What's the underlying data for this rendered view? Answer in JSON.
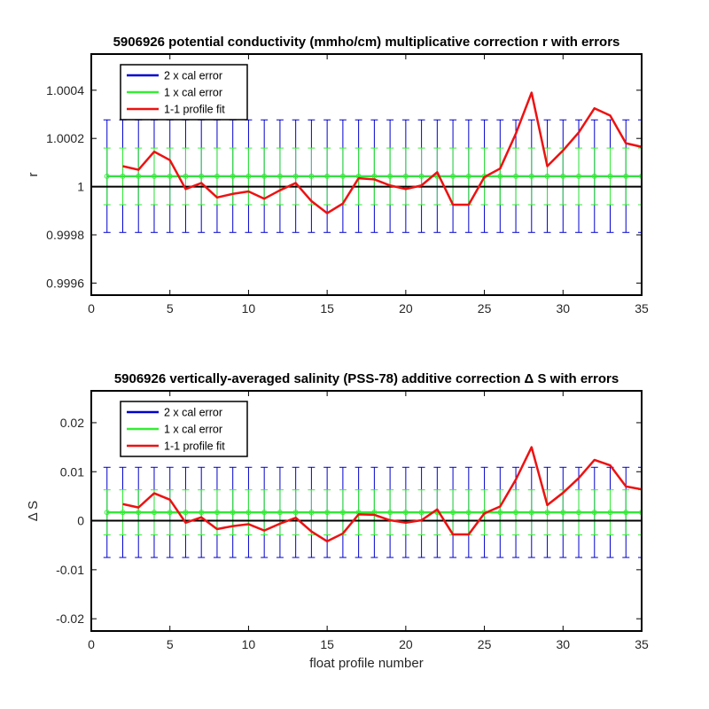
{
  "chart_data": [
    {
      "type": "line",
      "title": "5906926 potential conductivity (mmho/cm) multiplicative correction r with errors",
      "xlabel": "",
      "ylabel": "r",
      "xlim": [
        0,
        35
      ],
      "ylim": [
        0.99955,
        1.00055
      ],
      "x_ticks": [
        0,
        5,
        10,
        15,
        20,
        25,
        30,
        35
      ],
      "x_tick_labels": [
        "0",
        "5",
        "10",
        "15",
        "20",
        "25",
        "30",
        "35"
      ],
      "y_ticks": [
        0.9996,
        0.9998,
        1.0,
        1.0002,
        1.0004
      ],
      "y_tick_labels": [
        "0.9996",
        "0.9998",
        "1",
        "1.0002",
        "1.0004"
      ],
      "reference_line": 1.0,
      "legend": {
        "placement": "top-left",
        "entries": [
          "2 x cal error",
          "1 x cal error",
          "1-1 profile fit"
        ]
      },
      "colors": {
        "two_x": "#0000cc",
        "one_x": "#33ee33",
        "fit": "#ee1111",
        "reference": "#000000"
      },
      "series": [
        {
          "name": "2 x cal error",
          "x": [
            1,
            2,
            3,
            4,
            5,
            6,
            7,
            8,
            9,
            10,
            11,
            12,
            13,
            14,
            15,
            16,
            17,
            18,
            19,
            20,
            21,
            22,
            23,
            24,
            25,
            26,
            27,
            28,
            29,
            30,
            31,
            32,
            33,
            34,
            35
          ],
          "center": 1.000043,
          "lower": 0.99981,
          "upper": 1.000277
        },
        {
          "name": "1 x cal error",
          "x": [
            1,
            2,
            3,
            4,
            5,
            6,
            7,
            8,
            9,
            10,
            11,
            12,
            13,
            14,
            15,
            16,
            17,
            18,
            19,
            20,
            21,
            22,
            23,
            24,
            25,
            26,
            27,
            28,
            29,
            30,
            31,
            32,
            33,
            34,
            35
          ],
          "center": 1.000043,
          "lower": 0.999925,
          "upper": 1.00016
        },
        {
          "name": "1-1 profile fit",
          "x": [
            2,
            3,
            4,
            5,
            6,
            7,
            8,
            9,
            10,
            11,
            12,
            13,
            14,
            15,
            16,
            17,
            18,
            19,
            20,
            21,
            22,
            23,
            24,
            25,
            26,
            27,
            28,
            29,
            30,
            31,
            32,
            33,
            34,
            35
          ],
          "values": [
            1.000085,
            1.00007,
            1.000145,
            1.00011,
            0.99999,
            1.000015,
            0.999955,
            0.99997,
            0.99998,
            0.99995,
            0.999985,
            1.000015,
            0.99994,
            0.99989,
            0.99993,
            1.000035,
            1.00003,
            1.000005,
            0.99999,
            1.000005,
            1.00006,
            0.999925,
            0.999925,
            1.00004,
            1.000075,
            1.00022,
            1.00039,
            1.000085,
            1.00015,
            1.000225,
            1.000325,
            1.000295,
            1.00018,
            1.000165
          ]
        }
      ]
    },
    {
      "type": "line",
      "title": "5906926 vertically-averaged salinity (PSS-78) additive correction Δ S with errors",
      "xlabel": "float profile number",
      "ylabel": "Δ S",
      "xlim": [
        0,
        35
      ],
      "ylim": [
        -0.0225,
        0.0265
      ],
      "x_ticks": [
        0,
        5,
        10,
        15,
        20,
        25,
        30,
        35
      ],
      "x_tick_labels": [
        "0",
        "5",
        "10",
        "15",
        "20",
        "25",
        "30",
        "35"
      ],
      "y_ticks": [
        -0.02,
        -0.01,
        0,
        0.01,
        0.02
      ],
      "y_tick_labels": [
        "-0.02",
        "-0.01",
        "0",
        "0.01",
        "0.02"
      ],
      "reference_line": 0,
      "legend": {
        "placement": "top-left",
        "entries": [
          "2 x cal error",
          "1 x cal error",
          "1-1 profile fit"
        ]
      },
      "colors": {
        "two_x": "#0000cc",
        "one_x": "#33ee33",
        "fit": "#ee1111",
        "reference": "#000000"
      },
      "series": [
        {
          "name": "2 x cal error",
          "x": [
            1,
            2,
            3,
            4,
            5,
            6,
            7,
            8,
            9,
            10,
            11,
            12,
            13,
            14,
            15,
            16,
            17,
            18,
            19,
            20,
            21,
            22,
            23,
            24,
            25,
            26,
            27,
            28,
            29,
            30,
            31,
            32,
            33,
            34,
            35
          ],
          "center": 0.0017,
          "lower": -0.0075,
          "upper": 0.0109
        },
        {
          "name": "1 x cal error",
          "x": [
            1,
            2,
            3,
            4,
            5,
            6,
            7,
            8,
            9,
            10,
            11,
            12,
            13,
            14,
            15,
            16,
            17,
            18,
            19,
            20,
            21,
            22,
            23,
            24,
            25,
            26,
            27,
            28,
            29,
            30,
            31,
            32,
            33,
            34,
            35
          ],
          "center": 0.0017,
          "lower": -0.0029,
          "upper": 0.0063
        },
        {
          "name": "1-1 profile fit",
          "x": [
            2,
            3,
            4,
            5,
            6,
            7,
            8,
            9,
            10,
            11,
            12,
            13,
            14,
            15,
            16,
            17,
            18,
            19,
            20,
            21,
            22,
            23,
            24,
            25,
            26,
            27,
            28,
            29,
            30,
            31,
            32,
            33,
            34,
            35
          ],
          "values": [
            0.0034,
            0.0027,
            0.0056,
            0.0043,
            -0.0004,
            0.0007,
            -0.0017,
            -0.0011,
            -0.0007,
            -0.002,
            -0.0006,
            0.0006,
            -0.0022,
            -0.0042,
            -0.0026,
            0.0013,
            0.0012,
            0.0001,
            -0.0004,
            0.0001,
            0.0023,
            -0.0028,
            -0.0028,
            0.0015,
            0.0029,
            0.0084,
            0.015,
            0.0032,
            0.0057,
            0.0087,
            0.0124,
            0.0113,
            0.007,
            0.0064
          ]
        }
      ]
    }
  ]
}
